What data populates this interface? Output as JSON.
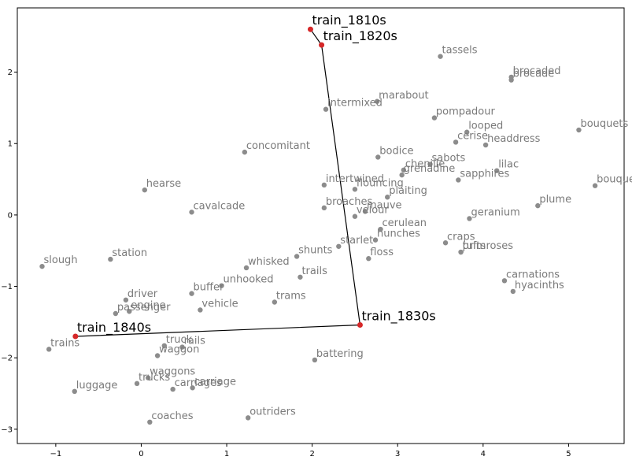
{
  "chart_data": {
    "type": "scatter",
    "title": "",
    "xlabel": "",
    "ylabel": "",
    "xlim": [
      -1.45,
      5.65
    ],
    "ylim": [
      -3.2,
      2.9
    ],
    "xticks": [
      -1,
      0,
      1,
      2,
      3,
      4,
      5
    ],
    "yticks": [
      -3,
      -2,
      -1,
      0,
      1,
      2
    ],
    "grid": false,
    "colors": {
      "points": "#8c8c8c",
      "trajectory_points": "#d62728",
      "trajectory_line": "#000000",
      "word_labels": "#7a7a7a"
    },
    "trajectory": [
      {
        "label": "train_1810s",
        "x": 1.98,
        "y": 2.6
      },
      {
        "label": "train_1820s",
        "x": 2.11,
        "y": 2.38
      },
      {
        "label": "train_1830s",
        "x": 2.56,
        "y": -1.54
      },
      {
        "label": "train_1840s",
        "x": -0.77,
        "y": -1.7
      }
    ],
    "points": [
      {
        "label": "tassels",
        "x": 3.5,
        "y": 2.22
      },
      {
        "label": "brocaded",
        "x": 4.33,
        "y": 1.93
      },
      {
        "label": "brocade",
        "x": 4.33,
        "y": 1.89
      },
      {
        "label": "marabout",
        "x": 2.76,
        "y": 1.59
      },
      {
        "label": "intermixed",
        "x": 2.16,
        "y": 1.48
      },
      {
        "label": "pompadour",
        "x": 3.43,
        "y": 1.36
      },
      {
        "label": "looped",
        "x": 3.81,
        "y": 1.16
      },
      {
        "label": "bouquets",
        "x": 5.12,
        "y": 1.19
      },
      {
        "label": "cerise",
        "x": 3.68,
        "y": 1.02
      },
      {
        "label": "headdress",
        "x": 4.03,
        "y": 0.98
      },
      {
        "label": "concomitant",
        "x": 1.21,
        "y": 0.88
      },
      {
        "label": "bodice",
        "x": 2.77,
        "y": 0.81
      },
      {
        "label": "sabots",
        "x": 3.38,
        "y": 0.71
      },
      {
        "label": "chenille",
        "x": 3.07,
        "y": 0.63
      },
      {
        "label": "lilac",
        "x": 4.16,
        "y": 0.62
      },
      {
        "label": "intertwined",
        "x": 2.14,
        "y": 0.42
      },
      {
        "label": "grenadine",
        "x": 3.05,
        "y": 0.56
      },
      {
        "label": "sapphires",
        "x": 3.71,
        "y": 0.49
      },
      {
        "label": "bouquet",
        "x": 5.31,
        "y": 0.41
      },
      {
        "label": "hearse",
        "x": 0.04,
        "y": 0.35
      },
      {
        "label": "flouncing",
        "x": 2.5,
        "y": 0.36
      },
      {
        "label": "plaiting",
        "x": 2.88,
        "y": 0.25
      },
      {
        "label": "plume",
        "x": 4.64,
        "y": 0.13
      },
      {
        "label": "broaches",
        "x": 2.14,
        "y": 0.1
      },
      {
        "label": "mauve",
        "x": 2.62,
        "y": 0.05
      },
      {
        "label": "cavalcade",
        "x": 0.59,
        "y": 0.04
      },
      {
        "label": "velour",
        "x": 2.5,
        "y": -0.02
      },
      {
        "label": "geranium",
        "x": 3.84,
        "y": -0.05
      },
      {
        "label": "cerulean",
        "x": 2.8,
        "y": -0.2
      },
      {
        "label": "craps",
        "x": 3.56,
        "y": -0.39
      },
      {
        "label": "starlet",
        "x": 2.31,
        "y": -0.44
      },
      {
        "label": "hunches",
        "x": 2.74,
        "y": -0.35
      },
      {
        "label": "tufts",
        "x": 3.74,
        "y": -0.52
      },
      {
        "label": "primroses",
        "x": 3.74,
        "y": -0.52
      },
      {
        "label": "shunts",
        "x": 1.82,
        "y": -0.58
      },
      {
        "label": "floss",
        "x": 2.66,
        "y": -0.61
      },
      {
        "label": "whisked",
        "x": 1.23,
        "y": -0.74
      },
      {
        "label": "trails",
        "x": 1.86,
        "y": -0.87
      },
      {
        "label": "carnations",
        "x": 4.25,
        "y": -0.92
      },
      {
        "label": "unhooked",
        "x": 0.94,
        "y": -0.99
      },
      {
        "label": "driver",
        "x": -0.18,
        "y": -1.19
      },
      {
        "label": "buffer",
        "x": 0.59,
        "y": -1.1
      },
      {
        "label": "hyacinths",
        "x": 4.35,
        "y": -1.07
      },
      {
        "label": "trams",
        "x": 1.56,
        "y": -1.22
      },
      {
        "label": "engine",
        "x": -0.14,
        "y": -1.35
      },
      {
        "label": "vehicle",
        "x": 0.69,
        "y": -1.33
      },
      {
        "label": "passenger",
        "x": -0.3,
        "y": -1.38
      },
      {
        "label": "slough",
        "x": -1.16,
        "y": -0.72
      },
      {
        "label": "station",
        "x": -0.36,
        "y": -0.62
      },
      {
        "label": "truck",
        "x": 0.27,
        "y": -1.83
      },
      {
        "label": "rails",
        "x": 0.48,
        "y": -1.85
      },
      {
        "label": "trains",
        "x": -1.08,
        "y": -1.88
      },
      {
        "label": "waggon",
        "x": 0.19,
        "y": -1.97
      },
      {
        "label": "battering",
        "x": 2.03,
        "y": -2.03
      },
      {
        "label": "waggons",
        "x": 0.08,
        "y": -2.28
      },
      {
        "label": "trucks",
        "x": -0.05,
        "y": -2.36
      },
      {
        "label": "carriages",
        "x": 0.37,
        "y": -2.44
      },
      {
        "label": "carriage",
        "x": 0.6,
        "y": -2.42
      },
      {
        "label": "luggage",
        "x": -0.78,
        "y": -2.47
      },
      {
        "label": "outriders",
        "x": 1.25,
        "y": -2.84
      },
      {
        "label": "coaches",
        "x": 0.1,
        "y": -2.9
      }
    ]
  }
}
